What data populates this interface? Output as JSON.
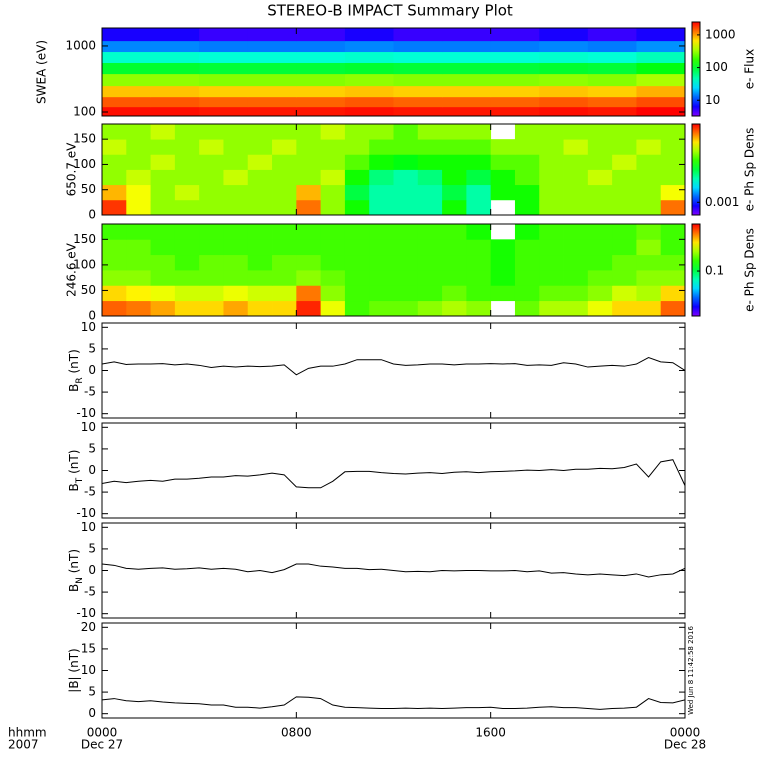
{
  "chart_data": [
    {
      "type": "heatmap",
      "title": "STEREO-B IMPACT Summary Plot",
      "ylabel": "SWEA (eV)",
      "log_y": true,
      "ylim": [
        87,
        1870
      ],
      "yticks": [
        100,
        1000
      ],
      "xlim": [
        0,
        24
      ],
      "x_edges": [
        0,
        2,
        4,
        6,
        8,
        10,
        12,
        14,
        16,
        18,
        20,
        22,
        24
      ],
      "y_edges": [
        87,
        120,
        170,
        250,
        380,
        560,
        820,
        1200,
        1870
      ],
      "z": [
        [
          2300,
          2300,
          2200,
          2200,
          2200,
          2300,
          2200,
          2200,
          2200,
          2300,
          2200,
          2500
        ],
        [
          1500,
          1500,
          1400,
          1400,
          1400,
          1500,
          1400,
          1400,
          1400,
          1500,
          1400,
          1600
        ],
        [
          800,
          800,
          750,
          750,
          750,
          800,
          750,
          750,
          750,
          800,
          750,
          900
        ],
        [
          300,
          300,
          280,
          280,
          280,
          300,
          280,
          280,
          280,
          300,
          280,
          350
        ],
        [
          100,
          100,
          95,
          95,
          95,
          100,
          95,
          95,
          95,
          100,
          95,
          120
        ],
        [
          40,
          40,
          38,
          38,
          38,
          40,
          38,
          38,
          38,
          40,
          38,
          45
        ],
        [
          15,
          15,
          14,
          14,
          14,
          15,
          14,
          14,
          14,
          15,
          14,
          16
        ],
        [
          6,
          6,
          5,
          5,
          5,
          6,
          5,
          5,
          5,
          6,
          5,
          6
        ]
      ],
      "colormap": "rainbow",
      "colorbar": {
        "label": "e- Flux",
        "log": true,
        "lim": [
          3.3,
          2480
        ],
        "ticks": [
          10,
          100,
          1000
        ]
      }
    },
    {
      "type": "heatmap",
      "ylabel": "650.7 eV",
      "log_y": false,
      "ylim": [
        0,
        180
      ],
      "yticks": [
        0,
        50,
        100,
        150
      ],
      "xlim": [
        0,
        24
      ],
      "x_edges": [
        0,
        1,
        2,
        3,
        4,
        5,
        6,
        7,
        8,
        9,
        10,
        11,
        12,
        13,
        14,
        15,
        16,
        17,
        18,
        19,
        20,
        21,
        22,
        23,
        24
      ],
      "y_edges": [
        0,
        30,
        60,
        90,
        120,
        150,
        180
      ],
      "z": [
        [
          0.008,
          0.005,
          0.004,
          0.004,
          0.004,
          0.004,
          0.004,
          0.004,
          0.007,
          0.004,
          0.003,
          0.002,
          0.002,
          0.002,
          0.003,
          0.002,
          null,
          0.003,
          0.004,
          0.004,
          0.004,
          0.004,
          0.004,
          0.007
        ],
        [
          0.006,
          0.005,
          0.004,
          0.0045,
          0.004,
          0.004,
          0.004,
          0.004,
          0.006,
          0.004,
          0.0025,
          0.002,
          0.002,
          0.002,
          0.0025,
          0.002,
          0.003,
          0.003,
          0.004,
          0.004,
          0.004,
          0.004,
          0.004,
          0.005
        ],
        [
          0.004,
          0.0045,
          0.004,
          0.004,
          0.004,
          0.0045,
          0.004,
          0.004,
          0.004,
          0.0045,
          0.003,
          0.0022,
          0.002,
          0.0022,
          0.003,
          0.0025,
          0.003,
          0.0035,
          0.004,
          0.004,
          0.0045,
          0.004,
          0.004,
          0.004
        ],
        [
          0.004,
          0.004,
          0.0045,
          0.004,
          0.004,
          0.004,
          0.0045,
          0.004,
          0.004,
          0.004,
          0.0035,
          0.003,
          0.0028,
          0.003,
          0.003,
          0.003,
          0.0035,
          0.0035,
          0.004,
          0.004,
          0.004,
          0.0045,
          0.004,
          0.004
        ],
        [
          0.0045,
          0.004,
          0.004,
          0.004,
          0.0045,
          0.004,
          0.004,
          0.0045,
          0.004,
          0.004,
          0.004,
          0.0035,
          0.0035,
          0.0035,
          0.0035,
          0.0035,
          0.004,
          0.004,
          0.004,
          0.0045,
          0.004,
          0.004,
          0.0045,
          0.004
        ],
        [
          0.004,
          0.004,
          0.0045,
          0.004,
          0.004,
          0.004,
          0.004,
          0.004,
          0.004,
          0.0045,
          0.004,
          0.004,
          0.0035,
          0.004,
          0.004,
          0.004,
          null,
          0.004,
          0.004,
          0.004,
          0.004,
          0.004,
          0.004,
          0.004
        ]
      ],
      "colormap": "rainbow",
      "colorbar": {
        "label": "e- Ph Sp Dens",
        "log": true,
        "lim": [
          0.0007,
          0.009
        ],
        "ticks": [
          0.001
        ]
      }
    },
    {
      "type": "heatmap",
      "ylabel": "246.6 eV",
      "log_y": false,
      "ylim": [
        0,
        180
      ],
      "yticks": [
        0,
        50,
        100,
        150
      ],
      "xlim": [
        0,
        24
      ],
      "x_edges": [
        0,
        1,
        2,
        3,
        4,
        5,
        6,
        7,
        8,
        9,
        10,
        11,
        12,
        13,
        14,
        15,
        16,
        17,
        18,
        19,
        20,
        21,
        22,
        23,
        24
      ],
      "y_edges": [
        0,
        30,
        60,
        90,
        120,
        150,
        180
      ],
      "z": [
        [
          0.25,
          0.24,
          0.22,
          0.2,
          0.2,
          0.22,
          0.2,
          0.2,
          0.28,
          0.18,
          0.13,
          0.14,
          0.14,
          0.15,
          0.16,
          0.15,
          null,
          0.14,
          0.16,
          0.16,
          0.18,
          0.2,
          0.2,
          0.25
        ],
        [
          0.2,
          0.19,
          0.18,
          0.17,
          0.17,
          0.18,
          0.17,
          0.17,
          0.24,
          0.15,
          0.13,
          0.13,
          0.13,
          0.13,
          0.14,
          0.13,
          0.13,
          0.13,
          0.14,
          0.14,
          0.15,
          0.17,
          0.16,
          0.2
        ],
        [
          0.15,
          0.15,
          0.14,
          0.14,
          0.14,
          0.14,
          0.14,
          0.14,
          0.15,
          0.14,
          0.13,
          0.13,
          0.13,
          0.13,
          0.13,
          0.13,
          0.12,
          0.13,
          0.13,
          0.13,
          0.14,
          0.14,
          0.15,
          0.15
        ],
        [
          0.14,
          0.14,
          0.14,
          0.13,
          0.14,
          0.14,
          0.13,
          0.14,
          0.14,
          0.13,
          0.13,
          0.13,
          0.13,
          0.13,
          0.13,
          0.13,
          0.12,
          0.13,
          0.13,
          0.13,
          0.13,
          0.14,
          0.14,
          0.14
        ],
        [
          0.14,
          0.14,
          0.13,
          0.13,
          0.13,
          0.13,
          0.13,
          0.13,
          0.13,
          0.13,
          0.13,
          0.13,
          0.13,
          0.13,
          0.13,
          0.13,
          0.12,
          0.13,
          0.13,
          0.13,
          0.13,
          0.13,
          0.15,
          0.13
        ],
        [
          0.13,
          0.13,
          0.13,
          0.13,
          0.13,
          0.13,
          0.13,
          0.13,
          0.13,
          0.13,
          0.13,
          0.13,
          0.13,
          0.13,
          0.13,
          0.12,
          null,
          0.12,
          0.13,
          0.13,
          0.13,
          0.13,
          0.14,
          0.13
        ]
      ],
      "colormap": "rainbow",
      "colorbar": {
        "label": "e- Ph Sp Dens",
        "log": true,
        "lim": [
          0.035,
          0.3
        ],
        "ticks": [
          0.1
        ]
      }
    },
    {
      "type": "line",
      "ylabel": [
        {
          "text": "B"
        },
        {
          "text": "R",
          "sub": true
        },
        {
          "text": " (nT)"
        }
      ],
      "ylim": [
        -11,
        11
      ],
      "yticks": [
        -10,
        -5,
        0,
        5,
        10
      ],
      "xlim": [
        0,
        24
      ],
      "color": "#000000",
      "x": [
        0,
        0.5,
        1,
        1.5,
        2,
        2.5,
        3,
        3.5,
        4,
        4.5,
        5,
        5.5,
        6,
        6.5,
        7,
        7.5,
        8,
        8.5,
        9,
        9.5,
        10,
        10.5,
        11,
        11.5,
        12,
        12.5,
        13,
        13.5,
        14,
        14.5,
        15,
        15.5,
        16,
        16.5,
        17,
        17.5,
        18,
        18.5,
        19,
        19.5,
        20,
        20.5,
        21,
        21.5,
        22,
        22.5,
        23,
        23.5,
        24
      ],
      "values": [
        1.5,
        2.0,
        1.4,
        1.5,
        1.5,
        1.6,
        1.3,
        1.5,
        1.2,
        0.7,
        1.0,
        0.8,
        1.0,
        0.9,
        1.0,
        1.3,
        -1.0,
        0.5,
        1.0,
        1.0,
        1.5,
        2.5,
        2.5,
        2.5,
        1.5,
        1.2,
        1.3,
        1.5,
        1.5,
        1.3,
        1.5,
        1.5,
        1.6,
        1.5,
        1.6,
        1.2,
        1.3,
        1.2,
        1.8,
        1.5,
        0.8,
        1.0,
        1.2,
        1.0,
        1.5,
        3.0,
        2.0,
        1.8,
        0.0
      ]
    },
    {
      "type": "line",
      "ylabel": [
        {
          "text": "B"
        },
        {
          "text": "T",
          "sub": true
        },
        {
          "text": " (nT)"
        }
      ],
      "ylim": [
        -11,
        11
      ],
      "yticks": [
        -10,
        -5,
        0,
        5,
        10
      ],
      "xlim": [
        0,
        24
      ],
      "color": "#000000",
      "x": [
        0,
        0.5,
        1,
        1.5,
        2,
        2.5,
        3,
        3.5,
        4,
        4.5,
        5,
        5.5,
        6,
        6.5,
        7,
        7.5,
        8,
        8.5,
        9,
        9.5,
        10,
        10.5,
        11,
        11.5,
        12,
        12.5,
        13,
        13.5,
        14,
        14.5,
        15,
        15.5,
        16,
        16.5,
        17,
        17.5,
        18,
        18.5,
        19,
        19.5,
        20,
        20.5,
        21,
        21.5,
        22,
        22.5,
        23,
        23.5,
        24
      ],
      "values": [
        -3.0,
        -2.5,
        -2.8,
        -2.5,
        -2.3,
        -2.5,
        -2.0,
        -2.0,
        -1.8,
        -1.5,
        -1.5,
        -1.2,
        -1.3,
        -1.0,
        -0.6,
        -1.0,
        -3.8,
        -4.0,
        -4.0,
        -2.5,
        -0.3,
        -0.2,
        -0.2,
        -0.5,
        -0.7,
        -0.8,
        -0.6,
        -0.5,
        -0.7,
        -0.4,
        -0.3,
        -0.5,
        -0.3,
        -0.2,
        -0.1,
        0.1,
        0.0,
        0.2,
        0.0,
        0.3,
        0.3,
        0.5,
        0.4,
        0.7,
        1.5,
        -1.5,
        2.0,
        2.5,
        -3.5
      ]
    },
    {
      "type": "line",
      "ylabel": [
        {
          "text": "B"
        },
        {
          "text": "N",
          "sub": true
        },
        {
          "text": " (nT)"
        }
      ],
      "ylim": [
        -11,
        11
      ],
      "yticks": [
        -10,
        -5,
        0,
        5,
        10
      ],
      "xlim": [
        0,
        24
      ],
      "color": "#000000",
      "x": [
        0,
        0.5,
        1,
        1.5,
        2,
        2.5,
        3,
        3.5,
        4,
        4.5,
        5,
        5.5,
        6,
        6.5,
        7,
        7.5,
        8,
        8.5,
        9,
        9.5,
        10,
        10.5,
        11,
        11.5,
        12,
        12.5,
        13,
        13.5,
        14,
        14.5,
        15,
        15.5,
        16,
        16.5,
        17,
        17.5,
        18,
        18.5,
        19,
        19.5,
        20,
        20.5,
        21,
        21.5,
        22,
        22.5,
        23,
        23.5,
        24
      ],
      "values": [
        1.5,
        1.2,
        0.5,
        0.3,
        0.5,
        0.6,
        0.3,
        0.4,
        0.6,
        0.3,
        0.5,
        0.3,
        -0.3,
        0.0,
        -0.5,
        0.2,
        1.5,
        1.5,
        1.0,
        0.8,
        0.5,
        0.5,
        0.2,
        0.3,
        0.0,
        -0.3,
        -0.2,
        -0.3,
        0.0,
        -0.1,
        0.0,
        0.0,
        -0.1,
        -0.1,
        0.0,
        -0.3,
        -0.1,
        -0.6,
        -0.5,
        -0.8,
        -1.0,
        -0.8,
        -1.0,
        -1.2,
        -0.8,
        -1.5,
        -1.0,
        -0.8,
        0.5
      ]
    },
    {
      "type": "line",
      "ylabel": [
        {
          "text": "|B| (nT)"
        }
      ],
      "ylim": [
        -1,
        21
      ],
      "yticks": [
        0,
        5,
        10,
        15,
        20
      ],
      "xlim": [
        0,
        24
      ],
      "color": "#000000",
      "x": [
        0,
        0.5,
        1,
        1.5,
        2,
        2.5,
        3,
        3.5,
        4,
        4.5,
        5,
        5.5,
        6,
        6.5,
        7,
        7.5,
        8,
        8.5,
        9,
        9.5,
        10,
        10.5,
        11,
        11.5,
        12,
        12.5,
        13,
        13.5,
        14,
        14.5,
        15,
        15.5,
        16,
        16.5,
        17,
        17.5,
        18,
        18.5,
        19,
        19.5,
        20,
        20.5,
        21,
        21.5,
        22,
        22.5,
        23,
        23.5,
        24
      ],
      "values": [
        3.2,
        3.5,
        3.0,
        2.8,
        3.0,
        2.7,
        2.5,
        2.4,
        2.3,
        2.0,
        2.0,
        1.5,
        1.5,
        1.3,
        1.6,
        2.0,
        3.9,
        3.8,
        3.5,
        2.0,
        1.5,
        1.4,
        1.3,
        1.2,
        1.2,
        1.3,
        1.2,
        1.3,
        1.2,
        1.3,
        1.4,
        1.4,
        1.5,
        1.2,
        1.2,
        1.3,
        1.5,
        1.6,
        1.4,
        1.4,
        1.2,
        1.0,
        1.2,
        1.3,
        1.5,
        3.5,
        2.6,
        2.5,
        3.2
      ],
      "xticks": [
        {
          "value": 0,
          "label": "0000"
        },
        {
          "value": 8,
          "label": "0800"
        },
        {
          "value": 16,
          "label": "1600"
        },
        {
          "value": 24,
          "label": "0000"
        }
      ],
      "xtick_dates": [
        {
          "value": 0,
          "label": "Dec 27"
        },
        {
          "value": 24,
          "label": "Dec 28"
        }
      ],
      "xlabel": "hhmm",
      "year": "2007",
      "timestamp": "Wed Jun 8 11:42:58 2016"
    }
  ]
}
